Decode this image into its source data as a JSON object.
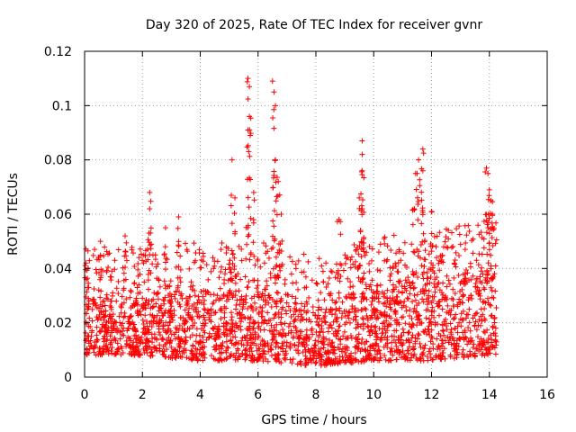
{
  "chart_data": {
    "type": "scatter",
    "title": "Day 320 of 2025, Rate Of TEC Index for receiver gvnr",
    "xlabel": "GPS time / hours",
    "ylabel": "ROTI / TECUs",
    "xlim": [
      0,
      16
    ],
    "ylim": [
      0,
      0.12
    ],
    "xticks": [
      "0",
      "2",
      "4",
      "6",
      "8",
      "10",
      "12",
      "14",
      "16"
    ],
    "yticks": [
      "0",
      "0.02",
      "0.04",
      "0.06",
      "0.08",
      "0.1",
      "0.12"
    ],
    "grid": true,
    "marker": "+",
    "series_color": "#ff0000",
    "x_range_of_data": [
      0,
      14.25
    ],
    "series": [
      {
        "name": "ROTI",
        "description": "dense cloud of points, baseline mostly 0.005-0.03 TECU/s, with spikes",
        "baseline": [
          {
            "x": 0.0,
            "low": 0.008,
            "high": 0.03
          },
          {
            "x": 2.0,
            "low": 0.008,
            "high": 0.03
          },
          {
            "x": 4.0,
            "low": 0.006,
            "high": 0.032
          },
          {
            "x": 6.0,
            "low": 0.006,
            "high": 0.032
          },
          {
            "x": 8.0,
            "low": 0.004,
            "high": 0.026
          },
          {
            "x": 10.0,
            "low": 0.006,
            "high": 0.034
          },
          {
            "x": 12.0,
            "low": 0.006,
            "high": 0.036
          },
          {
            "x": 14.0,
            "low": 0.008,
            "high": 0.04
          }
        ],
        "spikes": [
          {
            "x": 0.05,
            "y": 0.042
          },
          {
            "x": 0.55,
            "y": 0.05
          },
          {
            "x": 1.4,
            "y": 0.052
          },
          {
            "x": 2.25,
            "y": 0.068
          },
          {
            "x": 2.25,
            "y": 0.062
          },
          {
            "x": 2.8,
            "y": 0.055
          },
          {
            "x": 3.25,
            "y": 0.059
          },
          {
            "x": 5.1,
            "y": 0.08
          },
          {
            "x": 5.2,
            "y": 0.066
          },
          {
            "x": 5.65,
            "y": 0.11
          },
          {
            "x": 5.7,
            "y": 0.107
          },
          {
            "x": 5.7,
            "y": 0.096
          },
          {
            "x": 5.65,
            "y": 0.091
          },
          {
            "x": 5.85,
            "y": 0.068
          },
          {
            "x": 6.5,
            "y": 0.109
          },
          {
            "x": 6.55,
            "y": 0.105
          },
          {
            "x": 6.6,
            "y": 0.1
          },
          {
            "x": 6.6,
            "y": 0.08
          },
          {
            "x": 6.7,
            "y": 0.072
          },
          {
            "x": 6.8,
            "y": 0.06
          },
          {
            "x": 8.8,
            "y": 0.058
          },
          {
            "x": 9.5,
            "y": 0.066
          },
          {
            "x": 9.6,
            "y": 0.087
          },
          {
            "x": 9.6,
            "y": 0.082
          },
          {
            "x": 9.6,
            "y": 0.076
          },
          {
            "x": 9.6,
            "y": 0.062
          },
          {
            "x": 11.4,
            "y": 0.062
          },
          {
            "x": 11.5,
            "y": 0.075
          },
          {
            "x": 11.55,
            "y": 0.08
          },
          {
            "x": 11.7,
            "y": 0.084
          },
          {
            "x": 11.7,
            "y": 0.076
          },
          {
            "x": 12.0,
            "y": 0.061
          },
          {
            "x": 13.9,
            "y": 0.077
          },
          {
            "x": 13.95,
            "y": 0.075
          },
          {
            "x": 14.0,
            "y": 0.069
          },
          {
            "x": 14.05,
            "y": 0.065
          },
          {
            "x": 14.1,
            "y": 0.06
          }
        ]
      }
    ]
  }
}
